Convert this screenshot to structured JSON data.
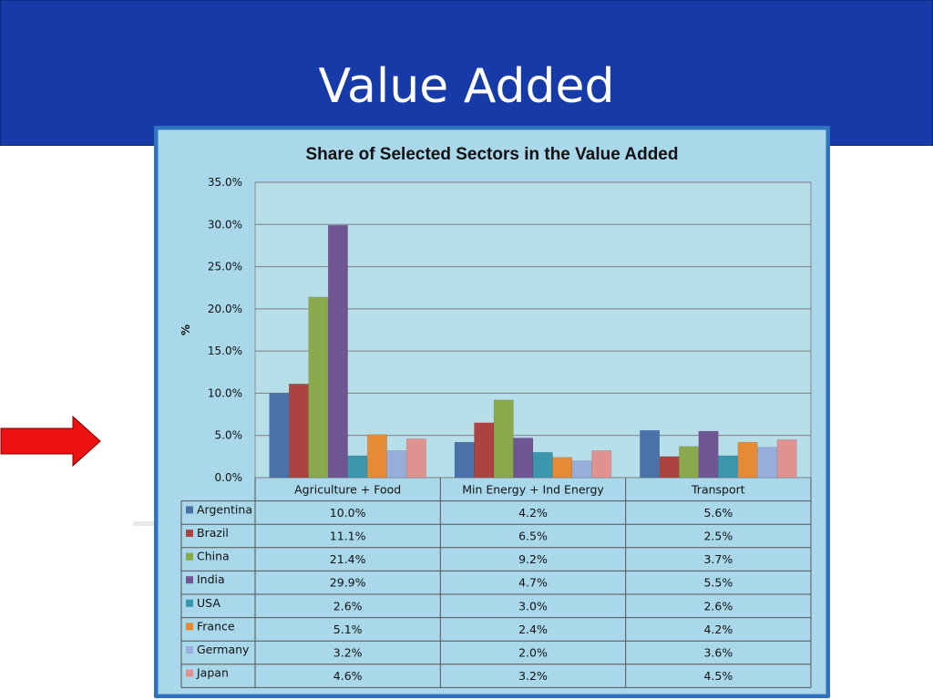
{
  "slide": {
    "title": "Value Added"
  },
  "chart_data": {
    "type": "bar",
    "title": "Share of Selected Sectors in the Value Added",
    "xlabel": "",
    "ylabel": "%",
    "ylim": [
      0,
      35
    ],
    "yticks": [
      "0.0%",
      "5.0%",
      "10.0%",
      "15.0%",
      "20.0%",
      "25.0%",
      "30.0%",
      "35.0%"
    ],
    "categories": [
      "Agriculture + Food",
      "Min Energy + Ind Energy",
      "Transport"
    ],
    "grid": true,
    "legend": "data-table",
    "series": [
      {
        "name": "Argentina",
        "color": "#4a72a9",
        "values": [
          10.0,
          4.2,
          5.6
        ],
        "labels": [
          "10.0%",
          "4.2%",
          "5.6%"
        ]
      },
      {
        "name": "Brazil",
        "color": "#ab4441",
        "values": [
          11.1,
          6.5,
          2.5
        ],
        "labels": [
          "11.1%",
          "6.5%",
          "2.5%"
        ]
      },
      {
        "name": "China",
        "color": "#8aa94d",
        "values": [
          21.4,
          9.2,
          3.7
        ],
        "labels": [
          "21.4%",
          "9.2%",
          "3.7%"
        ]
      },
      {
        "name": "India",
        "color": "#6f5592",
        "values": [
          29.9,
          4.7,
          5.5
        ],
        "labels": [
          "29.9%",
          "4.7%",
          "5.5%"
        ]
      },
      {
        "name": "USA",
        "color": "#3a97ad",
        "values": [
          2.6,
          3.0,
          2.6
        ],
        "labels": [
          "2.6%",
          "3.0%",
          "2.6%"
        ]
      },
      {
        "name": "France",
        "color": "#e68a36",
        "values": [
          5.1,
          2.4,
          4.2
        ],
        "labels": [
          "5.1%",
          "2.4%",
          "4.2%"
        ]
      },
      {
        "name": "Germany",
        "color": "#97aedb",
        "values": [
          3.2,
          2.0,
          3.6
        ],
        "labels": [
          "3.2%",
          "2.0%",
          "3.6%"
        ]
      },
      {
        "name": "Japan",
        "color": "#df9290",
        "values": [
          4.6,
          3.2,
          4.5
        ],
        "labels": [
          "4.6%",
          "3.2%",
          "4.5%"
        ]
      }
    ]
  },
  "colors": {
    "title_bar": "#173aa9",
    "chart_frame": "#2f72bd",
    "chart_bg": "#a9d8eb",
    "plot_bg": "#b7dfea",
    "arrow": "#ee1111"
  },
  "icons": {
    "pointer": "right-arrow-icon"
  }
}
